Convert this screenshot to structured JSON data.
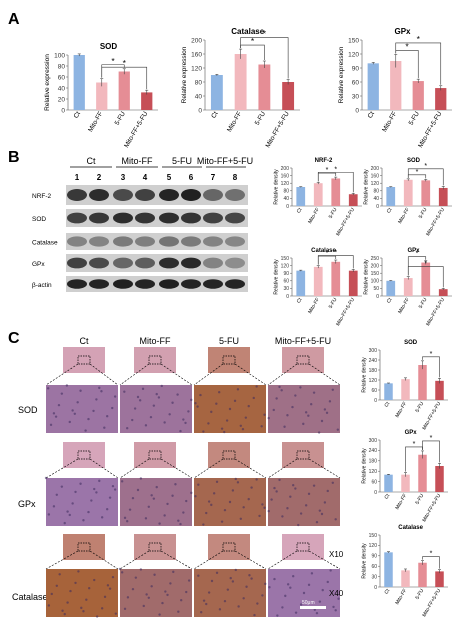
{
  "panels": {
    "A": "A",
    "B": "B",
    "C": "C"
  },
  "blot": {
    "group_labels": [
      "Ct",
      "Mito-FF",
      "5-FU",
      "Mito-FF+5-FU"
    ],
    "lane_numbers": [
      "1",
      "2",
      "3",
      "4",
      "5",
      "6",
      "7",
      "8"
    ],
    "row_labels": [
      "NRF-2",
      "SOD",
      "Catalase",
      "GPx",
      "β-actin"
    ]
  },
  "ihc": {
    "column_labels": [
      "Ct",
      "Mito-FF",
      "5-FU",
      "Mito-FF+5-FU"
    ],
    "row_labels": [
      "SOD",
      "GPx",
      "Catalase"
    ],
    "magnification_low": "X10",
    "magnification_high": "X40",
    "scalebar_label": "50μm",
    "colors": {
      "low_pink": "#d9a9c3",
      "high_purple": "#9a78b8",
      "brown": "#a8612c"
    }
  },
  "chart_data": [
    {
      "type": "bar",
      "title": "SOD",
      "ylabel": "Relative expression",
      "categories": [
        "Ct",
        "Mito-FF",
        "5-FU",
        "Mito-FF+5-FU"
      ],
      "values": [
        100,
        50,
        70,
        32
      ],
      "errors": [
        2,
        7,
        5,
        4
      ],
      "ylim": [
        0,
        100
      ],
      "significance": [
        "*",
        "*"
      ],
      "colors": [
        "#8db4e2",
        "#f2b8bd",
        "#e58d95",
        "#c64f57"
      ]
    },
    {
      "type": "bar",
      "title": "Catalase",
      "ylabel": "Relative expression",
      "categories": [
        "Ct",
        "Mito-FF",
        "5-FU",
        "Mito-FF+5-FU"
      ],
      "values": [
        100,
        160,
        130,
        80
      ],
      "errors": [
        2,
        14,
        10,
        7
      ],
      "ylim": [
        0,
        200
      ],
      "significance": [
        "*",
        "*"
      ],
      "colors": [
        "#8db4e2",
        "#f2b8bd",
        "#e58d95",
        "#c64f57"
      ]
    },
    {
      "type": "bar",
      "title": "GPx",
      "ylabel": "Relative expression",
      "categories": [
        "Ct",
        "Mito-FF",
        "5-FU",
        "Mito-FF+5-FU"
      ],
      "values": [
        100,
        105,
        62,
        47
      ],
      "errors": [
        2,
        14,
        4,
        5
      ],
      "ylim": [
        0,
        150
      ],
      "significance": [
        "*",
        "*"
      ],
      "colors": [
        "#8db4e2",
        "#f2b8bd",
        "#e58d95",
        "#c64f57"
      ]
    },
    {
      "type": "bar",
      "title": "NRF-2",
      "ylabel": "Relative density",
      "categories": [
        "Ct",
        "Mito-FF",
        "5-FU",
        "Mito-FF+5-FU"
      ],
      "values": [
        100,
        120,
        145,
        62
      ],
      "errors": [
        2,
        5,
        7,
        5
      ],
      "ylim": [
        0,
        200
      ],
      "significance": [
        "*",
        "*"
      ],
      "colors": [
        "#8db4e2",
        "#f2b8bd",
        "#e58d95",
        "#c64f57"
      ]
    },
    {
      "type": "bar",
      "title": "SOD",
      "ylabel": "Relative density",
      "categories": [
        "Ct",
        "Mito-FF",
        "5-FU",
        "Mito-FF+5-FU"
      ],
      "values": [
        100,
        138,
        135,
        95
      ],
      "errors": [
        2,
        5,
        5,
        8
      ],
      "ylim": [
        0,
        200
      ],
      "significance": [
        "*",
        "*"
      ],
      "colors": [
        "#8db4e2",
        "#f2b8bd",
        "#e58d95",
        "#c64f57"
      ]
    },
    {
      "type": "bar",
      "title": "Catalase",
      "ylabel": "Relative density",
      "categories": [
        "Ct",
        "Mito-FF",
        "5-FU",
        "Mito-FF+5-FU"
      ],
      "values": [
        100,
        115,
        135,
        100
      ],
      "errors": [
        2,
        5,
        7,
        5
      ],
      "ylim": [
        0,
        150
      ],
      "significance": [
        "*",
        "*"
      ],
      "colors": [
        "#8db4e2",
        "#f2b8bd",
        "#e58d95",
        "#c64f57"
      ]
    },
    {
      "type": "bar",
      "title": "GPx",
      "ylabel": "Relative density",
      "categories": [
        "Ct",
        "Mito-FF",
        "5-FU",
        "Mito-FF+5-FU"
      ],
      "values": [
        100,
        118,
        220,
        45
      ],
      "errors": [
        2,
        10,
        12,
        5
      ],
      "ylim": [
        0,
        250
      ],
      "significance": [
        "*",
        "*"
      ],
      "colors": [
        "#8db4e2",
        "#f2b8bd",
        "#e58d95",
        "#c64f57"
      ]
    },
    {
      "type": "bar",
      "title": "SOD",
      "ylabel": "Relative density",
      "categories": [
        "Ct",
        "Mito-FF",
        "5-FU",
        "Mito-FF+5-FU"
      ],
      "values": [
        100,
        125,
        210,
        115
      ],
      "errors": [
        2,
        8,
        25,
        15
      ],
      "ylim": [
        0,
        300
      ],
      "significance": [
        "*"
      ],
      "colors": [
        "#8db4e2",
        "#f2b8bd",
        "#e58d95",
        "#c64f57"
      ]
    },
    {
      "type": "bar",
      "title": "GPx",
      "ylabel": "Relative density",
      "categories": [
        "Ct",
        "Mito-FF",
        "5-FU",
        "Mito-FF+5-FU"
      ],
      "values": [
        100,
        100,
        215,
        150
      ],
      "errors": [
        2,
        12,
        22,
        15
      ],
      "ylim": [
        0,
        300
      ],
      "significance": [
        "*",
        "*"
      ],
      "colors": [
        "#8db4e2",
        "#f2b8bd",
        "#e58d95",
        "#c64f57"
      ]
    },
    {
      "type": "bar",
      "title": "Catalase",
      "ylabel": "Relative density",
      "categories": [
        "Ct",
        "Mito-FF",
        "5-FU",
        "Mito-FF+5-FU"
      ],
      "values": [
        100,
        48,
        70,
        45
      ],
      "errors": [
        2,
        4,
        6,
        5
      ],
      "ylim": [
        0,
        150
      ],
      "significance": [
        "*"
      ],
      "colors": [
        "#8db4e2",
        "#f2b8bd",
        "#e58d95",
        "#c64f57"
      ]
    }
  ]
}
